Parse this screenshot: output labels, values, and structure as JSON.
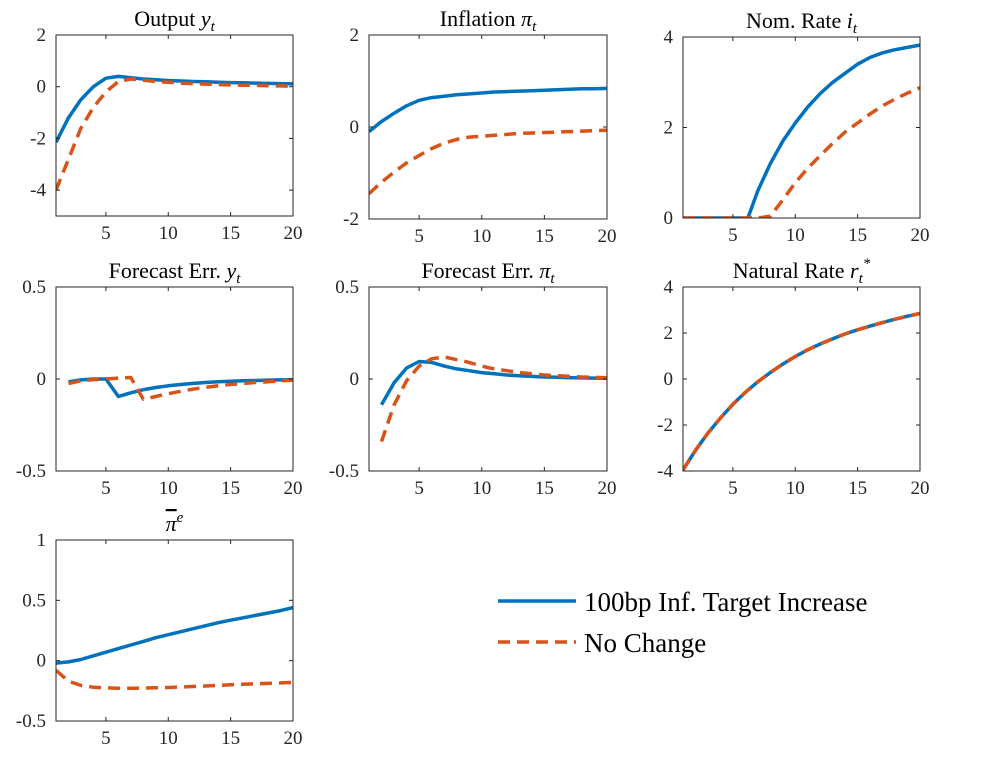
{
  "colors": {
    "blue": "#0072BD",
    "orange": "#D95319",
    "axis": "#262626"
  },
  "legend": {
    "placement": "bottom-right",
    "entries": [
      {
        "label": "100bp Inf. Target Increase",
        "style": "solid",
        "color": "#0072BD"
      },
      {
        "label": "No Change",
        "style": "dashed",
        "color": "#D95319"
      }
    ]
  },
  "chart_data": [
    {
      "type": "line",
      "title": {
        "main": "Output ",
        "sym": "y",
        "sub": "t"
      },
      "xlim": [
        1,
        20
      ],
      "ylim": [
        -5,
        2
      ],
      "xticks": [
        5,
        10,
        15,
        20
      ],
      "xtick_labels": [
        "5",
        "10",
        "15",
        "20"
      ],
      "yticks": [
        -4,
        -2,
        0,
        2
      ],
      "ytick_labels": [
        "-4",
        "-2",
        "0",
        "2"
      ],
      "x": [
        1,
        2,
        3,
        4,
        5,
        6,
        7,
        8,
        9,
        10,
        11,
        12,
        13,
        14,
        15,
        16,
        17,
        18,
        19,
        20
      ],
      "series": [
        {
          "legend_index": 0,
          "values": [
            -2.15,
            -1.2,
            -0.5,
            0.0,
            0.33,
            0.4,
            0.35,
            0.3,
            0.27,
            0.24,
            0.22,
            0.2,
            0.19,
            0.17,
            0.16,
            0.15,
            0.14,
            0.13,
            0.12,
            0.11
          ]
        },
        {
          "legend_index": 1,
          "values": [
            -4.0,
            -2.8,
            -1.6,
            -0.8,
            -0.2,
            0.2,
            0.3,
            0.25,
            0.2,
            0.17,
            0.14,
            0.12,
            0.1,
            0.08,
            0.07,
            0.06,
            0.05,
            0.04,
            0.03,
            0.02
          ]
        }
      ]
    },
    {
      "type": "line",
      "title": {
        "main": "Inflation ",
        "sym": "π",
        "sub": "t"
      },
      "xlim": [
        1,
        20
      ],
      "ylim": [
        -2,
        2
      ],
      "xticks": [
        5,
        10,
        15,
        20
      ],
      "xtick_labels": [
        "5",
        "10",
        "15",
        "20"
      ],
      "yticks": [
        -2,
        0,
        2
      ],
      "ytick_labels": [
        "-2",
        "0",
        "2"
      ],
      "x": [
        1,
        2,
        3,
        4,
        5,
        6,
        7,
        8,
        9,
        10,
        11,
        12,
        13,
        14,
        15,
        16,
        17,
        18,
        19,
        20
      ],
      "series": [
        {
          "legend_index": 0,
          "values": [
            -0.1,
            0.12,
            0.3,
            0.46,
            0.58,
            0.64,
            0.67,
            0.7,
            0.72,
            0.74,
            0.76,
            0.77,
            0.78,
            0.79,
            0.8,
            0.81,
            0.82,
            0.83,
            0.83,
            0.84
          ]
        },
        {
          "legend_index": 1,
          "values": [
            -1.45,
            -1.2,
            -0.98,
            -0.78,
            -0.62,
            -0.47,
            -0.35,
            -0.27,
            -0.22,
            -0.2,
            -0.18,
            -0.16,
            -0.14,
            -0.13,
            -0.12,
            -0.11,
            -0.1,
            -0.09,
            -0.08,
            -0.07
          ]
        }
      ]
    },
    {
      "type": "line",
      "title": {
        "main": "Nom. Rate ",
        "sym": "i",
        "sub": "t"
      },
      "xlim": [
        1,
        20
      ],
      "ylim": [
        0,
        4
      ],
      "xticks": [
        5,
        10,
        15,
        20
      ],
      "xtick_labels": [
        "5",
        "10",
        "15",
        "20"
      ],
      "yticks": [
        0,
        2,
        4
      ],
      "ytick_labels": [
        "0",
        "2",
        "4"
      ],
      "x": [
        1,
        2,
        3,
        4,
        5,
        6,
        6.2,
        7,
        8,
        9,
        10,
        11,
        12,
        13,
        14,
        15,
        16,
        17,
        18,
        19,
        20
      ],
      "series": [
        {
          "legend_index": 0,
          "values": [
            0,
            0,
            0,
            0,
            0,
            0,
            0,
            0.6,
            1.2,
            1.7,
            2.1,
            2.45,
            2.75,
            3.0,
            3.2,
            3.4,
            3.55,
            3.65,
            3.72,
            3.77,
            3.82
          ]
        },
        {
          "legend_index": 1,
          "values": [
            0,
            0,
            0,
            0,
            0,
            0,
            0,
            0,
            0.04,
            0.4,
            0.78,
            1.1,
            1.38,
            1.65,
            1.9,
            2.1,
            2.3,
            2.48,
            2.63,
            2.76,
            2.88
          ]
        }
      ]
    },
    {
      "type": "line",
      "title": {
        "main": "Forecast Err. ",
        "sym": "y",
        "sub": "t"
      },
      "xlim": [
        1,
        20
      ],
      "ylim": [
        -0.5,
        0.5
      ],
      "xticks": [
        5,
        10,
        15,
        20
      ],
      "xtick_labels": [
        "5",
        "10",
        "15",
        "20"
      ],
      "yticks": [
        -0.5,
        0,
        0.5
      ],
      "ytick_labels": [
        "-0.5",
        "0",
        "0.5"
      ],
      "x": [
        2,
        3,
        4,
        5,
        6,
        7,
        8,
        9,
        10,
        11,
        12,
        13,
        14,
        15,
        16,
        17,
        18,
        19,
        20
      ],
      "series": [
        {
          "legend_index": 0,
          "values": [
            -0.015,
            -0.005,
            0.0,
            0.0,
            -0.095,
            -0.075,
            -0.058,
            -0.046,
            -0.037,
            -0.03,
            -0.024,
            -0.019,
            -0.015,
            -0.012,
            -0.01,
            -0.008,
            -0.006,
            -0.005,
            -0.004
          ]
        },
        {
          "legend_index": 1,
          "values": [
            -0.025,
            -0.01,
            -0.003,
            0.0,
            0.005,
            0.008,
            -0.11,
            -0.095,
            -0.08,
            -0.067,
            -0.055,
            -0.045,
            -0.037,
            -0.03,
            -0.024,
            -0.019,
            -0.015,
            -0.01,
            -0.006
          ]
        }
      ]
    },
    {
      "type": "line",
      "title": {
        "main": "Forecast Err. ",
        "sym": "π",
        "sub": "t"
      },
      "xlim": [
        1,
        20
      ],
      "ylim": [
        -0.5,
        0.5
      ],
      "xticks": [
        5,
        10,
        15,
        20
      ],
      "xtick_labels": [
        "5",
        "10",
        "15",
        "20"
      ],
      "yticks": [
        -0.5,
        0,
        0.5
      ],
      "ytick_labels": [
        "-0.5",
        "0",
        "0.5"
      ],
      "x": [
        2,
        3,
        4,
        5,
        6,
        7,
        8,
        9,
        10,
        11,
        12,
        13,
        14,
        15,
        16,
        17,
        18,
        19,
        20
      ],
      "series": [
        {
          "legend_index": 0,
          "values": [
            -0.14,
            -0.02,
            0.06,
            0.095,
            0.09,
            0.07,
            0.055,
            0.045,
            0.035,
            0.028,
            0.022,
            0.018,
            0.014,
            0.011,
            0.009,
            0.007,
            0.006,
            0.005,
            0.004
          ]
        },
        {
          "legend_index": 1,
          "values": [
            -0.34,
            -0.14,
            -0.01,
            0.07,
            0.11,
            0.12,
            0.105,
            0.09,
            0.07,
            0.055,
            0.045,
            0.035,
            0.028,
            0.022,
            0.018,
            0.014,
            0.011,
            0.009,
            0.007
          ]
        }
      ]
    },
    {
      "type": "line",
      "title": {
        "main": "Natural Rate ",
        "sym": "r",
        "sub": "t",
        "sup": "*"
      },
      "xlim": [
        1,
        20
      ],
      "ylim": [
        -4,
        4
      ],
      "xticks": [
        5,
        10,
        15,
        20
      ],
      "xtick_labels": [
        "5",
        "10",
        "15",
        "20"
      ],
      "yticks": [
        -4,
        -2,
        0,
        2,
        4
      ],
      "ytick_labels": [
        "-4",
        "-2",
        "0",
        "2",
        "4"
      ],
      "x": [
        1,
        2,
        3,
        4,
        5,
        6,
        7,
        8,
        9,
        10,
        11,
        12,
        13,
        14,
        15,
        16,
        17,
        18,
        19,
        20
      ],
      "series": [
        {
          "legend_index": 0,
          "values": [
            -3.95,
            -3.1,
            -2.35,
            -1.7,
            -1.1,
            -0.58,
            -0.12,
            0.28,
            0.65,
            0.98,
            1.27,
            1.52,
            1.75,
            1.96,
            2.14,
            2.3,
            2.45,
            2.6,
            2.73,
            2.85
          ]
        },
        {
          "legend_index": 1,
          "values": [
            -3.95,
            -3.1,
            -2.35,
            -1.7,
            -1.1,
            -0.58,
            -0.12,
            0.28,
            0.65,
            0.98,
            1.27,
            1.52,
            1.75,
            1.96,
            2.14,
            2.3,
            2.45,
            2.6,
            2.73,
            2.85
          ]
        }
      ]
    },
    {
      "type": "line",
      "title": {
        "main": "",
        "sym": "π",
        "sup": "e",
        "overline": true
      },
      "xlim": [
        1,
        20
      ],
      "ylim": [
        -0.5,
        1
      ],
      "xticks": [
        5,
        10,
        15,
        20
      ],
      "xtick_labels": [
        "5",
        "10",
        "15",
        "20"
      ],
      "yticks": [
        -0.5,
        0,
        0.5,
        1
      ],
      "ytick_labels": [
        "-0.5",
        "0",
        "0.5",
        "1"
      ],
      "x": [
        1,
        2,
        3,
        4,
        5,
        6,
        7,
        8,
        9,
        10,
        11,
        12,
        13,
        14,
        15,
        16,
        17,
        18,
        19,
        20
      ],
      "series": [
        {
          "legend_index": 0,
          "values": [
            -0.02,
            -0.01,
            0.01,
            0.04,
            0.07,
            0.1,
            0.13,
            0.16,
            0.19,
            0.215,
            0.24,
            0.265,
            0.29,
            0.315,
            0.335,
            0.355,
            0.375,
            0.395,
            0.415,
            0.44
          ]
        },
        {
          "legend_index": 1,
          "values": [
            -0.08,
            -0.17,
            -0.205,
            -0.22,
            -0.225,
            -0.228,
            -0.228,
            -0.227,
            -0.225,
            -0.222,
            -0.218,
            -0.214,
            -0.21,
            -0.205,
            -0.2,
            -0.196,
            -0.192,
            -0.188,
            -0.184,
            -0.18
          ]
        }
      ]
    }
  ]
}
